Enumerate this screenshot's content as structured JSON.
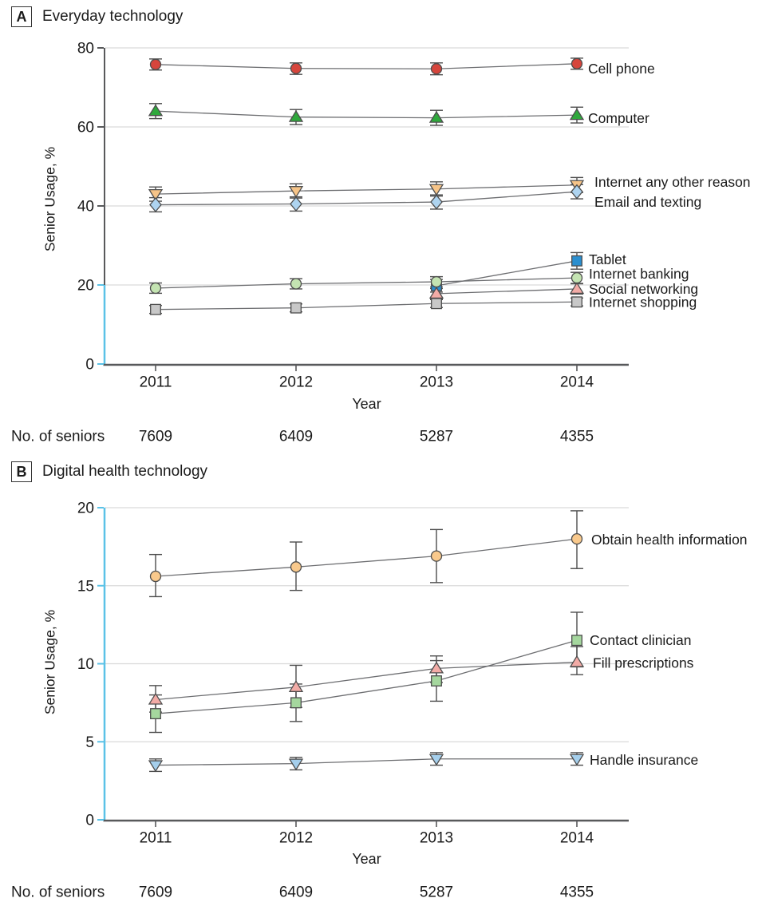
{
  "colors": {
    "axis": "#58595b",
    "axis_highlight": "#5bc2e7",
    "grid": "#d9d9d9",
    "series_line": "#6d6e71",
    "error_bar": "#4d4d4d",
    "marker_stroke": "#4d4d4d",
    "text": "#1a1a1a"
  },
  "chart_data": [
    {
      "type": "line",
      "panel": "A",
      "title": "Everyday technology",
      "xlabel": "Year",
      "ylabel": "Senior Usage, %",
      "x": [
        "2011",
        "2012",
        "2013",
        "2014"
      ],
      "ylim": [
        0,
        80
      ],
      "yticks": [
        0,
        20,
        40,
        60,
        80
      ],
      "grid": "horizontal",
      "axis_highlight_range": [
        0,
        20
      ],
      "legend_position": "right-of-last-point",
      "n_label": "No. of seniors",
      "n_values": [
        "7609",
        "6409",
        "5287",
        "4355"
      ],
      "series": [
        {
          "name": "Cell phone",
          "marker": "circle",
          "color": "#d6453c",
          "values": [
            75.8,
            74.8,
            74.7,
            76.0
          ],
          "errors": [
            [
              74.4,
              77.2
            ],
            [
              73.3,
              76.2
            ],
            [
              73.2,
              76.2
            ],
            [
              74.6,
              77.4
            ]
          ]
        },
        {
          "name": "Computer",
          "marker": "triangle-up",
          "color": "#2fa83c",
          "values": [
            64.0,
            62.5,
            62.3,
            63.0
          ],
          "errors": [
            [
              62.1,
              65.9
            ],
            [
              60.6,
              64.4
            ],
            [
              60.4,
              64.2
            ],
            [
              61.0,
              65.0
            ]
          ]
        },
        {
          "name": "Internet any other reason",
          "marker": "triangle-down",
          "color": "#f6c488",
          "values": [
            43.0,
            43.8,
            44.3,
            45.3
          ],
          "errors": [
            [
              41.2,
              44.8
            ],
            [
              42.0,
              45.6
            ],
            [
              42.5,
              46.1
            ],
            [
              43.4,
              47.2
            ]
          ]
        },
        {
          "name": "Email and texting",
          "marker": "diamond",
          "color": "#aed4f0",
          "values": [
            40.3,
            40.5,
            41.0,
            43.6
          ],
          "errors": [
            [
              38.5,
              42.1
            ],
            [
              38.7,
              42.3
            ],
            [
              39.2,
              42.8
            ],
            [
              41.8,
              45.4
            ]
          ]
        },
        {
          "name": "Tablet",
          "marker": "square",
          "color": "#2a8fd0",
          "values": [
            null,
            null,
            19.8,
            26.1
          ],
          "errors": [
            null,
            null,
            [
              18.2,
              21.4
            ],
            [
              24.0,
              28.2
            ]
          ]
        },
        {
          "name": "Internet banking",
          "marker": "circle",
          "color": "#c4e4b2",
          "values": [
            19.2,
            20.3,
            20.8,
            21.8
          ],
          "errors": [
            [
              17.9,
              20.5
            ],
            [
              19.0,
              21.6
            ],
            [
              19.5,
              22.1
            ],
            [
              20.4,
              23.2
            ]
          ]
        },
        {
          "name": "Social networking",
          "marker": "triangle-up",
          "color": "#f2aba6",
          "values": [
            null,
            null,
            17.8,
            19.0
          ],
          "errors": [
            null,
            null,
            [
              16.5,
              19.1
            ],
            [
              17.7,
              20.3
            ]
          ]
        },
        {
          "name": "Internet shopping",
          "marker": "square",
          "color": "#c8c8c8",
          "values": [
            13.8,
            14.2,
            15.3,
            15.7
          ],
          "errors": [
            [
              12.8,
              14.8
            ],
            [
              13.2,
              15.2
            ],
            [
              14.3,
              16.3
            ],
            [
              14.7,
              16.7
            ]
          ]
        }
      ]
    },
    {
      "type": "line",
      "panel": "B",
      "title": "Digital health technology",
      "xlabel": "Year",
      "ylabel": "Senior Usage, %",
      "x": [
        "2011",
        "2012",
        "2013",
        "2014"
      ],
      "ylim": [
        0,
        20
      ],
      "yticks": [
        0,
        5,
        10,
        15,
        20
      ],
      "grid": "horizontal",
      "axis_highlight_range": [
        0,
        20
      ],
      "legend_position": "right-of-last-point",
      "n_label": "No. of seniors",
      "n_values": [
        "7609",
        "6409",
        "5287",
        "4355"
      ],
      "series": [
        {
          "name": "Obtain health information",
          "marker": "circle",
          "color": "#f9c98c",
          "values": [
            15.6,
            16.2,
            16.9,
            18.0
          ],
          "errors": [
            [
              14.3,
              17.0
            ],
            [
              14.7,
              17.8
            ],
            [
              15.2,
              18.6
            ],
            [
              16.1,
              19.8
            ]
          ]
        },
        {
          "name": "Contact clinician",
          "marker": "square",
          "color": "#a5d79e",
          "values": [
            6.8,
            7.5,
            8.9,
            11.5
          ],
          "errors": [
            [
              5.6,
              8.0
            ],
            [
              6.3,
              8.7
            ],
            [
              7.6,
              10.2
            ],
            [
              9.8,
              13.3
            ]
          ]
        },
        {
          "name": "Fill prescriptions",
          "marker": "triangle-up",
          "color": "#f2aba6",
          "values": [
            7.7,
            8.5,
            9.7,
            10.1
          ],
          "errors": [
            [
              6.9,
              8.6
            ],
            [
              7.2,
              9.9
            ],
            [
              8.8,
              10.5
            ],
            [
              9.3,
              11.1
            ]
          ]
        },
        {
          "name": "Handle insurance",
          "marker": "triangle-down",
          "color": "#a5cfec",
          "values": [
            3.5,
            3.6,
            3.9,
            3.9
          ],
          "errors": [
            [
              3.1,
              3.9
            ],
            [
              3.2,
              4.0
            ],
            [
              3.5,
              4.3
            ],
            [
              3.5,
              4.3
            ]
          ]
        }
      ]
    }
  ]
}
